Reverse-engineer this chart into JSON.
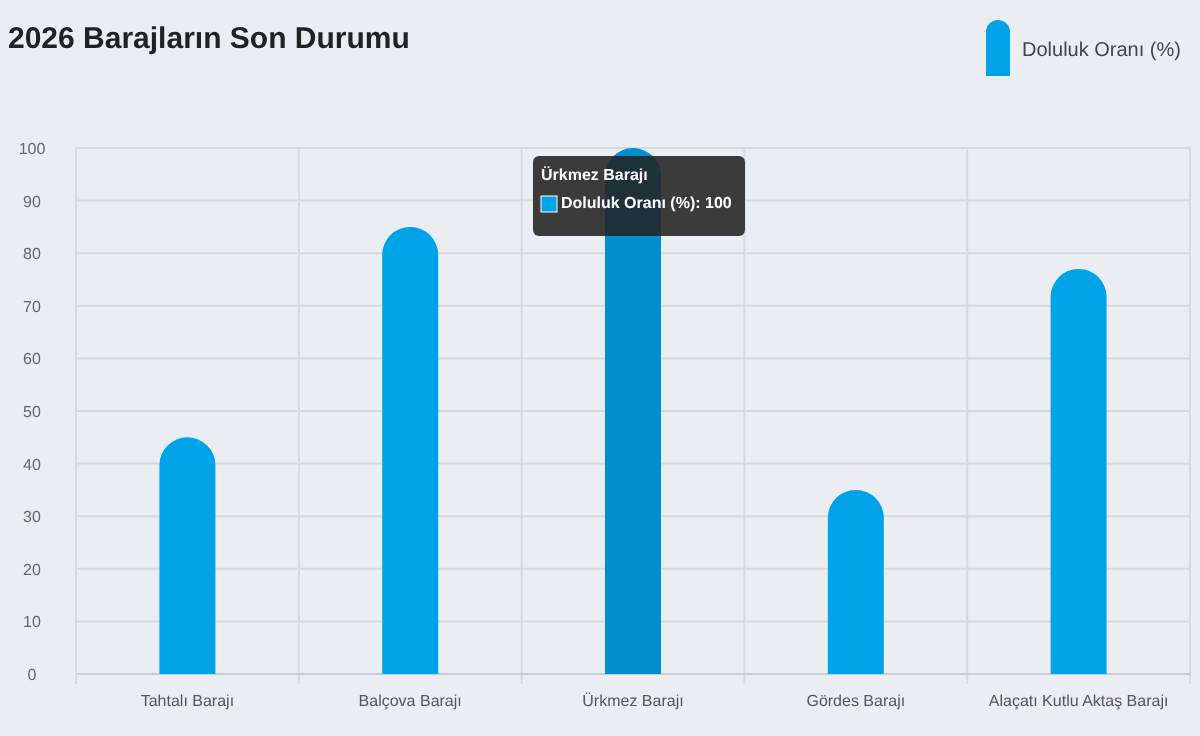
{
  "chart_data": {
    "type": "bar",
    "title": "2026 Barajların Son Durumu",
    "categories": [
      "Tahtalı Barajı",
      "Balçova Barajı",
      "Ürkmez Barajı",
      "Gördes Barajı",
      "Alaçatı Kutlu Aktaş Barajı"
    ],
    "series": [
      {
        "name": "Doluluk Oranı (%)",
        "color": "#00a3e8",
        "colors": [
          "#00a3e8",
          "#00a3e8",
          "#0090d0",
          "#00a3e8",
          "#00a3e8"
        ],
        "values": [
          45,
          85,
          100,
          35,
          77
        ]
      }
    ],
    "ylim": [
      0,
      100
    ],
    "yticks": [
      0,
      10,
      20,
      30,
      40,
      50,
      60,
      70,
      80,
      90,
      100
    ],
    "grid": true,
    "legend": "top right",
    "annotations": [
      {
        "text": "Ürkmez Barajı",
        "x": "Ürkmez Barajı",
        "y": 100
      },
      {
        "text": "Doluluk Oranı (%): 100",
        "x": "Ürkmez Barajı",
        "y": 100
      }
    ]
  }
}
